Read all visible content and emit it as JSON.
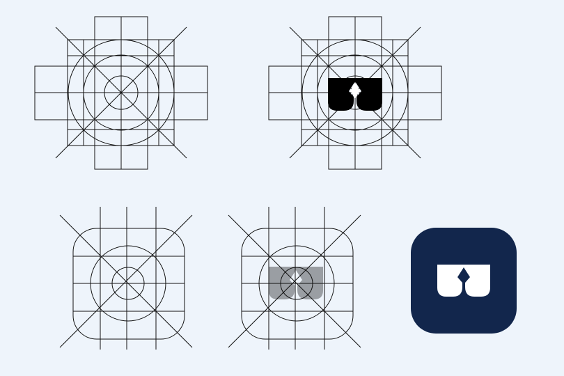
{
  "colors": {
    "background": "#eef4fb",
    "grid_stroke": "#111111",
    "logo_black": "#000000",
    "logo_gray": "#9a9ea3",
    "app_icon_bg": "#12264c",
    "logo_white": "#ffffff"
  },
  "panels": [
    {
      "name": "construction-grid-cross",
      "shape": "cross-grid",
      "logo": "none"
    },
    {
      "name": "construction-grid-cross-with-logo",
      "shape": "cross-grid",
      "logo": "black"
    },
    {
      "name": "construction-grid-rounded-square",
      "shape": "rounded-square-grid",
      "logo": "none"
    },
    {
      "name": "construction-grid-rounded-square-with-logo",
      "shape": "rounded-square-grid",
      "logo": "gray"
    },
    {
      "name": "final-app-icon",
      "shape": "app-icon",
      "logo": "white"
    }
  ]
}
